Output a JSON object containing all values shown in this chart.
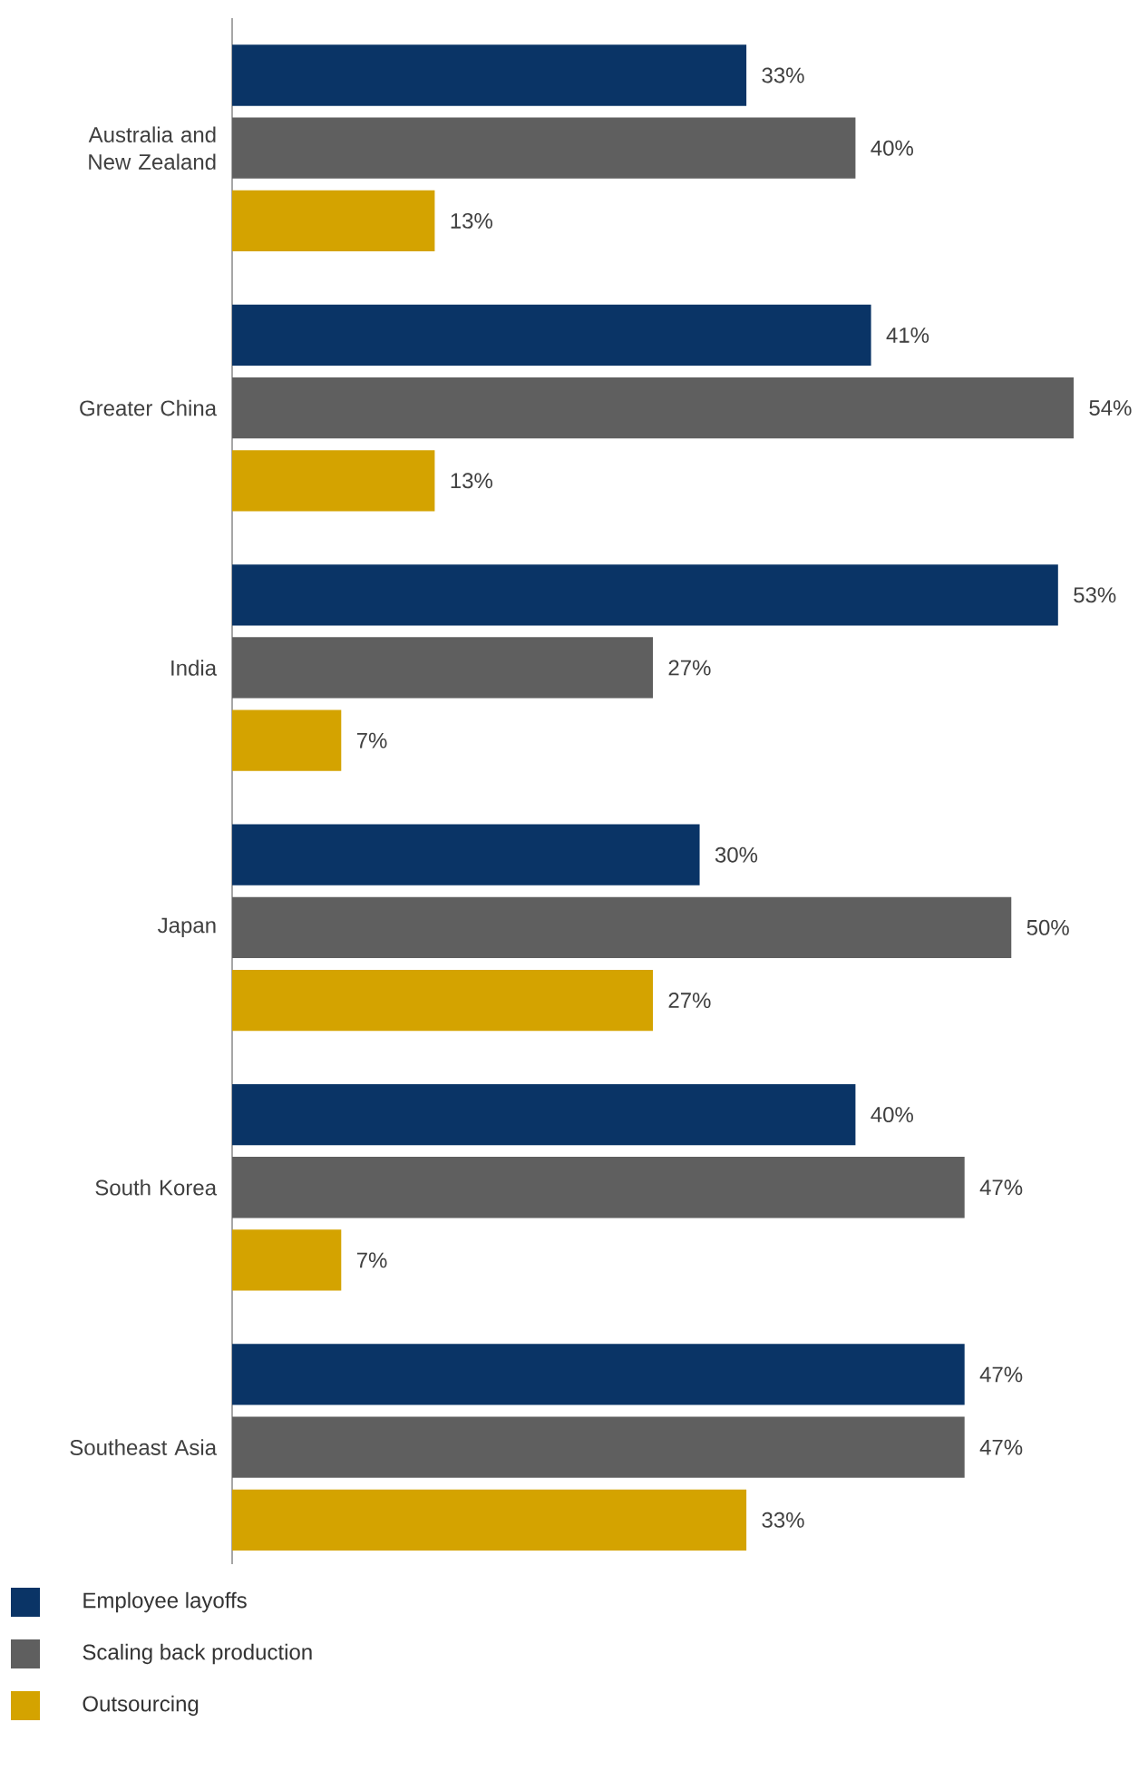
{
  "chart_data": {
    "type": "bar",
    "orientation": "horizontal",
    "legend": "bottom",
    "categories": [
      "Australia and New Zealand",
      "Greater China",
      "India",
      "Japan",
      "South Korea",
      "Southeast Asia"
    ],
    "series": [
      {
        "name": "Employee layoffs",
        "color": "#0a3466",
        "values": [
          33,
          41,
          53,
          30,
          40,
          47
        ],
        "value_labels": [
          "33%",
          "41%",
          "53%",
          "30%",
          "40%",
          "47%"
        ]
      },
      {
        "name": "Scaling back production",
        "color": "#5f5f5f",
        "values": [
          40,
          54,
          27,
          50,
          47,
          47
        ],
        "value_labels": [
          "40%",
          "54%",
          "27%",
          "50%",
          "47%",
          "47%"
        ]
      },
      {
        "name": "Outsourcing",
        "color": "#d4a300",
        "values": [
          13,
          13,
          7,
          27,
          7,
          33
        ],
        "value_labels": [
          "13%",
          "13%",
          "7%",
          "27%",
          "7%",
          "33%"
        ]
      }
    ]
  }
}
